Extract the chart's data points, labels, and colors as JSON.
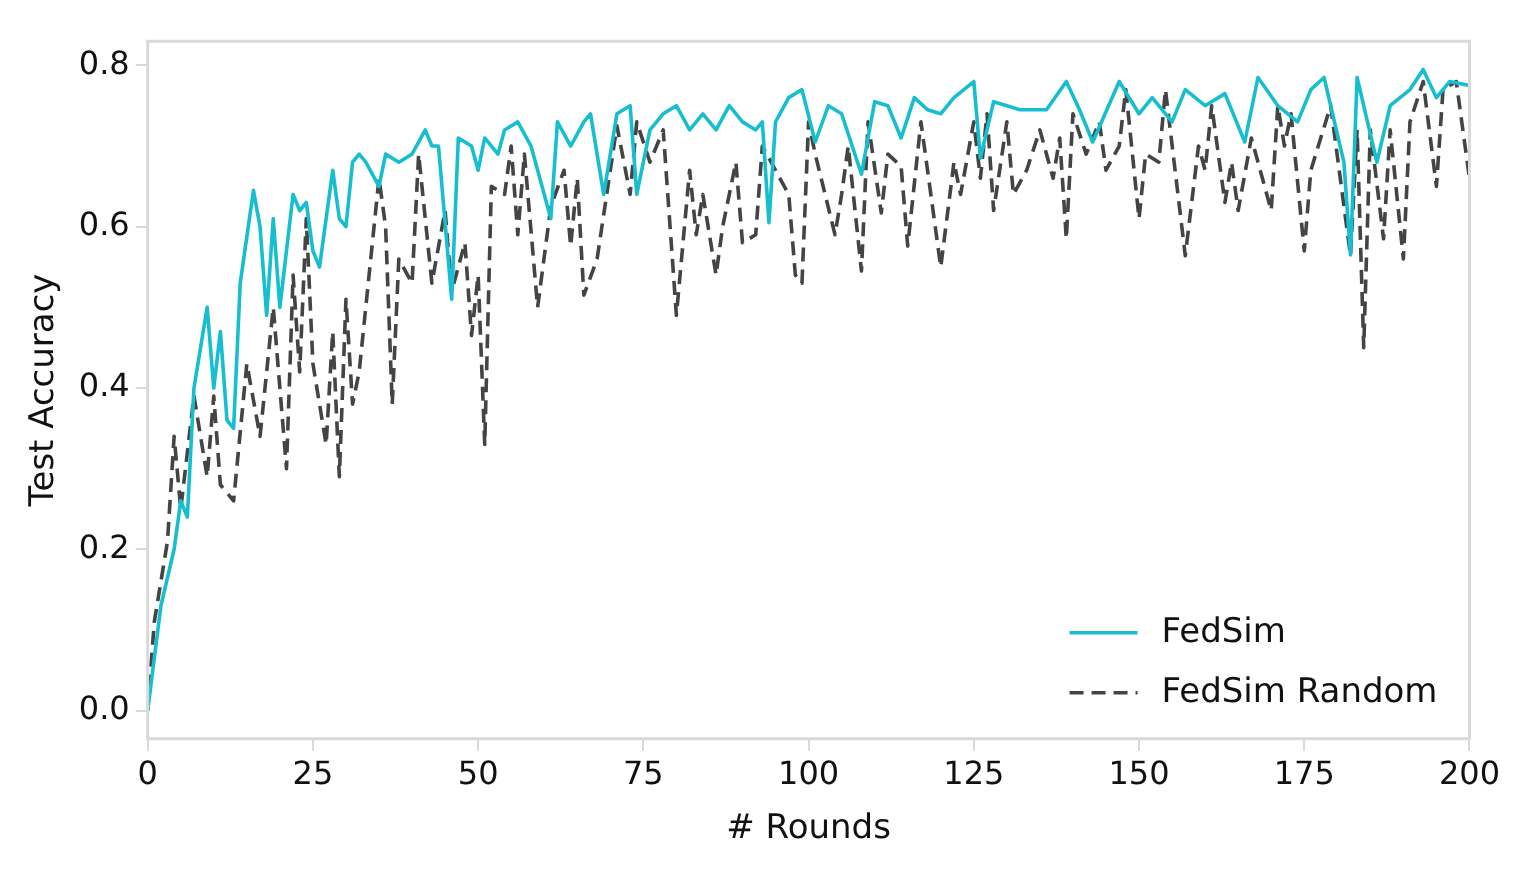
{
  "chart_data": {
    "type": "line",
    "xlabel": "# Rounds",
    "ylabel": "Test Accuracy",
    "xlim": [
      0,
      200
    ],
    "ylim": [
      -0.035,
      0.83
    ],
    "xticks": [
      0,
      25,
      50,
      75,
      100,
      125,
      150,
      175,
      200
    ],
    "yticks": [
      {
        "value": 0,
        "label": "0.0"
      },
      0.2,
      0.4,
      0.6,
      0.8
    ],
    "grid": false,
    "legend": "bottom right",
    "marker": "none",
    "series": [
      {
        "name": "FedSim",
        "color": "#17becf",
        "line_style": "solid",
        "x": [
          0,
          2,
          4,
          5,
          6,
          7,
          8,
          9,
          10,
          11,
          12,
          13,
          14,
          16,
          17,
          18,
          19,
          20,
          21,
          22,
          23,
          24,
          25,
          26,
          28,
          29,
          30,
          31,
          32,
          33,
          35,
          36,
          38,
          40,
          42,
          43,
          44,
          46,
          47,
          49,
          50,
          51,
          53,
          54,
          56,
          58,
          61,
          62,
          64,
          66,
          67,
          69,
          71,
          73,
          74,
          76,
          78,
          80,
          82,
          84,
          86,
          88,
          90,
          92,
          93,
          94,
          95,
          97,
          99,
          101,
          103,
          105,
          108,
          110,
          112,
          114,
          116,
          118,
          120,
          122,
          125,
          126,
          128,
          132,
          136,
          139,
          141,
          143,
          147,
          150,
          152,
          155,
          157,
          160,
          163,
          166,
          168,
          171,
          174,
          176,
          178,
          181,
          182,
          183,
          186,
          188,
          191,
          193,
          195,
          197,
          200
        ],
        "values": [
          0,
          0.13,
          0.2,
          0.26,
          0.24,
          0.4,
          0.45,
          0.5,
          0.4,
          0.47,
          0.36,
          0.35,
          0.53,
          0.645,
          0.6,
          0.49,
          0.61,
          0.5,
          0.57,
          0.64,
          0.62,
          0.63,
          0.57,
          0.55,
          0.67,
          0.61,
          0.6,
          0.68,
          0.69,
          0.68,
          0.65,
          0.69,
          0.68,
          0.69,
          0.72,
          0.7,
          0.7,
          0.51,
          0.71,
          0.7,
          0.67,
          0.71,
          0.69,
          0.72,
          0.73,
          0.7,
          0.61,
          0.73,
          0.7,
          0.73,
          0.74,
          0.64,
          0.74,
          0.75,
          0.64,
          0.72,
          0.74,
          0.75,
          0.72,
          0.74,
          0.72,
          0.75,
          0.73,
          0.72,
          0.73,
          0.605,
          0.73,
          0.76,
          0.77,
          0.705,
          0.75,
          0.74,
          0.665,
          0.755,
          0.75,
          0.71,
          0.76,
          0.745,
          0.74,
          0.76,
          0.78,
          0.685,
          0.755,
          0.745,
          0.745,
          0.78,
          0.745,
          0.705,
          0.78,
          0.74,
          0.76,
          0.73,
          0.77,
          0.75,
          0.765,
          0.705,
          0.785,
          0.75,
          0.73,
          0.77,
          0.785,
          0.68,
          0.565,
          0.785,
          0.68,
          0.75,
          0.77,
          0.795,
          0.76,
          0.78,
          0.775
        ]
      },
      {
        "name": "FedSim Random",
        "color": "#444444",
        "line_style": "dashed",
        "x": [
          0,
          1,
          3,
          4,
          5,
          7,
          9,
          10,
          11,
          13,
          15,
          17,
          19,
          21,
          22,
          23,
          24,
          25,
          27,
          28,
          29,
          30,
          31,
          32,
          35,
          36,
          37,
          38,
          40,
          41,
          43,
          45,
          46,
          48,
          49,
          50,
          51,
          52,
          54,
          55,
          56,
          57,
          59,
          61,
          63,
          64,
          65,
          66,
          68,
          71,
          73,
          74,
          76,
          78,
          80,
          82,
          83,
          84,
          86,
          87,
          89,
          90,
          92,
          93,
          97,
          98,
          99,
          100,
          101,
          104,
          105,
          106,
          108,
          109,
          111,
          112,
          114,
          115,
          117,
          120,
          122,
          123,
          125,
          126,
          127,
          128,
          130,
          131,
          133,
          135,
          137,
          138,
          139,
          140,
          142,
          144,
          145,
          147,
          148,
          150,
          151,
          153,
          154,
          157,
          159,
          160,
          161,
          163,
          164,
          165,
          167,
          170,
          171,
          172,
          173,
          175,
          176,
          179,
          182,
          183,
          184,
          185,
          187,
          188,
          190,
          191,
          193,
          195,
          196,
          198,
          200
        ],
        "values": [
          0,
          0.11,
          0.21,
          0.34,
          0.25,
          0.39,
          0.29,
          0.39,
          0.28,
          0.26,
          0.43,
          0.34,
          0.5,
          0.3,
          0.54,
          0.42,
          0.61,
          0.43,
          0.33,
          0.47,
          0.29,
          0.51,
          0.38,
          0.42,
          0.66,
          0.6,
          0.38,
          0.56,
          0.53,
          0.69,
          0.53,
          0.62,
          0.52,
          0.58,
          0.465,
          0.54,
          0.33,
          0.65,
          0.64,
          0.7,
          0.59,
          0.69,
          0.5,
          0.625,
          0.67,
          0.576,
          0.66,
          0.515,
          0.56,
          0.725,
          0.64,
          0.73,
          0.68,
          0.72,
          0.49,
          0.67,
          0.59,
          0.64,
          0.54,
          0.6,
          0.68,
          0.58,
          0.59,
          0.7,
          0.64,
          0.54,
          0.53,
          0.73,
          0.69,
          0.59,
          0.64,
          0.7,
          0.545,
          0.73,
          0.617,
          0.69,
          0.675,
          0.576,
          0.73,
          0.55,
          0.68,
          0.64,
          0.73,
          0.66,
          0.74,
          0.62,
          0.73,
          0.64,
          0.67,
          0.72,
          0.66,
          0.71,
          0.585,
          0.74,
          0.69,
          0.73,
          0.67,
          0.7,
          0.77,
          0.61,
          0.69,
          0.68,
          0.77,
          0.564,
          0.7,
          0.67,
          0.75,
          0.63,
          0.68,
          0.62,
          0.71,
          0.62,
          0.75,
          0.7,
          0.74,
          0.57,
          0.67,
          0.75,
          0.564,
          0.72,
          0.45,
          0.72,
          0.585,
          0.72,
          0.56,
          0.73,
          0.78,
          0.65,
          0.77,
          0.78,
          0.66
        ]
      }
    ]
  }
}
